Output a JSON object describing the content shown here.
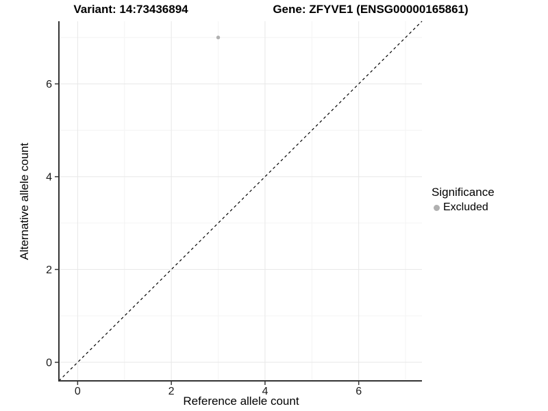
{
  "titles": {
    "variant": "Variant: 14:73436894",
    "gene": "Gene: ZFYVE1 (ENSG00000165861)"
  },
  "chart_data": {
    "type": "scatter",
    "xlabel": "Reference allele count",
    "ylabel": "Alternative allele count",
    "xlim": [
      -0.4,
      7.35
    ],
    "ylim": [
      -0.4,
      7.35
    ],
    "xticks": [
      0,
      2,
      4,
      6
    ],
    "yticks": [
      0,
      2,
      4,
      6
    ],
    "minor_gridlines_x": [
      1,
      3,
      5,
      7
    ],
    "minor_gridlines_y": [
      1,
      3,
      5,
      7
    ],
    "grid": true,
    "series": [
      {
        "name": "Excluded",
        "points": [
          {
            "x": 3,
            "y": 7
          }
        ],
        "color": "#b0b0b0"
      }
    ],
    "reference_line": {
      "type": "identity",
      "style": "dashed",
      "color": "#000000",
      "from": {
        "x": -0.4,
        "y": -0.4
      },
      "to": {
        "x": 7.35,
        "y": 7.35
      }
    },
    "legend": {
      "title": "Significance",
      "position": "right",
      "entries": [
        {
          "label": "Excluded",
          "color": "#b0b0b0",
          "marker": "circle"
        }
      ]
    }
  },
  "colors": {
    "background": "#ffffff",
    "axis_line": "#333333",
    "tick_mark": "#333333",
    "tick_label": "#1a1a1a",
    "grid_major": "#e7e7e7",
    "grid_minor": "#f4f4f4",
    "point": "#b0b0b0",
    "identity_line": "#000000"
  }
}
